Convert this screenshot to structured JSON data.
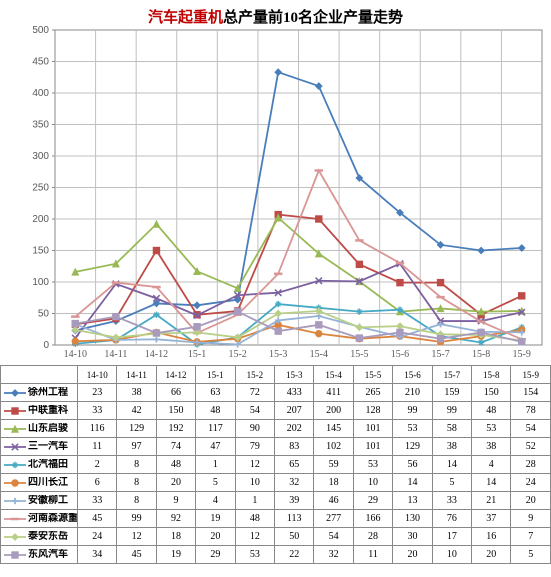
{
  "title_parts": {
    "red": "汽车起重机",
    "black": "总产量前10名企业产量走势"
  },
  "months": [
    "14-10",
    "14-11",
    "14-12",
    "15-1",
    "15-2",
    "15-3",
    "15-4",
    "15-5",
    "15-6",
    "15-7",
    "15-8",
    "15-9"
  ],
  "y": {
    "min": 0,
    "max": 500,
    "step": 50
  },
  "gridline_color": "#bfbfbf",
  "axis_color": "#888888",
  "chart_bg": "#ffffff",
  "series": [
    {
      "name": "徐州工程",
      "color": "#4a7ebb",
      "marker": "diamond",
      "data": [
        23,
        38,
        66,
        63,
        72,
        433,
        411,
        265,
        210,
        159,
        150,
        154
      ]
    },
    {
      "name": "中联重科",
      "color": "#be4b48",
      "marker": "square",
      "data": [
        33,
        42,
        150,
        48,
        54,
        207,
        200,
        128,
        99,
        99,
        48,
        78
      ]
    },
    {
      "name": "山东启骏",
      "color": "#98b954",
      "marker": "triangle",
      "data": [
        116,
        129,
        192,
        117,
        90,
        202,
        145,
        101,
        53,
        58,
        53,
        54
      ]
    },
    {
      "name": "三一汽车",
      "color": "#7d60a0",
      "marker": "x",
      "data": [
        11,
        97,
        74,
        47,
        79,
        83,
        102,
        101,
        129,
        38,
        38,
        52
      ]
    },
    {
      "name": "北汽福田",
      "color": "#46aac5",
      "marker": "star",
      "data": [
        2,
        8,
        48,
        1,
        12,
        65,
        59,
        53,
        56,
        14,
        4,
        28
      ]
    },
    {
      "name": "四川长江",
      "color": "#db843d",
      "marker": "circle",
      "data": [
        6,
        8,
        20,
        5,
        10,
        32,
        18,
        10,
        14,
        5,
        14,
        24
      ]
    },
    {
      "name": "安徽柳工",
      "color": "#95b3d7",
      "marker": "plus",
      "data": [
        33,
        8,
        9,
        4,
        1,
        39,
        46,
        29,
        13,
        33,
        21,
        20
      ]
    },
    {
      "name": "河南森源重工",
      "color": "#d99694",
      "marker": "dash",
      "data": [
        45,
        99,
        92,
        19,
        48,
        113,
        277,
        166,
        130,
        76,
        37,
        9
      ]
    },
    {
      "name": "泰安东岳",
      "color": "#b9cf87",
      "marker": "diamond",
      "data": [
        24,
        12,
        18,
        20,
        12,
        50,
        54,
        28,
        30,
        17,
        16,
        7
      ]
    },
    {
      "name": "东风汽车",
      "color": "#a99bbd",
      "marker": "square",
      "data": [
        34,
        45,
        19,
        29,
        53,
        22,
        32,
        11,
        20,
        10,
        20,
        5
      ]
    }
  ]
}
